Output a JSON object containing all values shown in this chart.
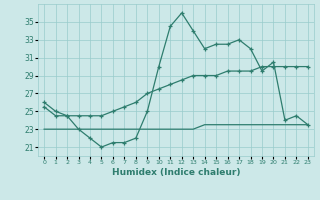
{
  "xlabel": "Humidex (Indice chaleur)",
  "x": [
    0,
    1,
    2,
    3,
    4,
    5,
    6,
    7,
    8,
    9,
    10,
    11,
    12,
    13,
    14,
    15,
    16,
    17,
    18,
    19,
    20,
    21,
    22,
    23
  ],
  "line1": [
    26,
    25,
    24.5,
    23,
    22,
    21,
    21.5,
    21.5,
    22,
    25,
    30,
    34.5,
    36,
    34,
    32,
    32.5,
    32.5,
    33,
    32,
    29.5,
    30.5,
    24,
    24.5,
    23.5
  ],
  "line2": [
    23,
    23,
    23,
    23,
    23,
    23,
    23,
    23,
    23,
    23,
    23,
    23,
    23,
    23,
    23.5,
    23.5,
    23.5,
    23.5,
    23.5,
    23.5,
    23.5,
    23.5,
    23.5,
    23.5
  ],
  "line3": [
    25.5,
    24.5,
    24.5,
    24.5,
    24.5,
    24.5,
    25,
    25.5,
    26,
    27,
    27.5,
    28,
    28.5,
    29,
    29,
    29,
    29.5,
    29.5,
    29.5,
    30,
    30,
    30,
    30,
    30
  ],
  "line_color": "#2e7d6e",
  "bg_color": "#cce8e8",
  "grid_color": "#99cccc",
  "ylim": [
    20,
    37
  ],
  "yticks": [
    21,
    23,
    25,
    27,
    29,
    31,
    33,
    35
  ],
  "xlim": [
    -0.5,
    23.5
  ],
  "xticks": [
    0,
    1,
    2,
    3,
    4,
    5,
    6,
    7,
    8,
    9,
    10,
    11,
    12,
    13,
    14,
    15,
    16,
    17,
    18,
    19,
    20,
    21,
    22,
    23
  ]
}
